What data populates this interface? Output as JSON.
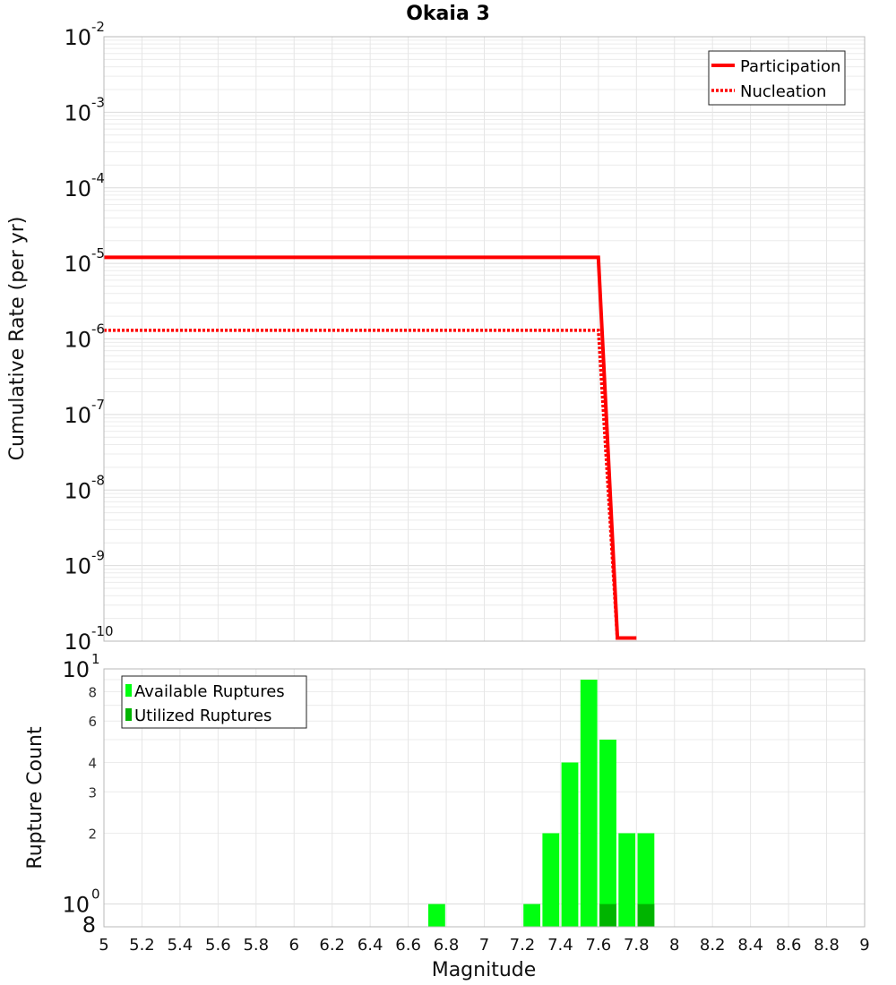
{
  "chart_data": [
    {
      "type": "line",
      "title": "Okaia 3",
      "xlabel": "",
      "ylabel": "Cumulative Rate (per yr)",
      "xlim": [
        5,
        9
      ],
      "ylim": [
        1e-10,
        0.01
      ],
      "yscale": "log",
      "grid": true,
      "legend_position": "top-right",
      "y_tick_exponents": [
        "-2",
        "-3",
        "-4",
        "-5",
        "-6",
        "-7",
        "-8",
        "-9",
        "-10"
      ],
      "y_tick_base": "10",
      "series": [
        {
          "name": "Participation",
          "style": "solid",
          "color": "#ff0000",
          "x": [
            5.0,
            7.6,
            7.7,
            7.8
          ],
          "y": [
            1.2e-05,
            1.2e-05,
            1.1e-10,
            1.1e-10
          ]
        },
        {
          "name": "Nucleation",
          "style": "dotted",
          "color": "#ff0000",
          "x": [
            5.0,
            7.6,
            7.7
          ],
          "y": [
            1.3e-06,
            1.3e-06,
            1e-10
          ]
        }
      ]
    },
    {
      "type": "bar",
      "title": "",
      "xlabel": "Magnitude",
      "ylabel": "Rupture Count",
      "xlim": [
        5,
        9
      ],
      "ylim": [
        0.8,
        10
      ],
      "yscale": "log",
      "grid": true,
      "legend_position": "top-left",
      "x_tick_labels": [
        "5",
        "5.2",
        "5.4",
        "5.6",
        "5.8",
        "6",
        "6.2",
        "6.4",
        "6.6",
        "6.8",
        "7",
        "7.2",
        "7.4",
        "7.6",
        "7.8",
        "8",
        "8.2",
        "8.4",
        "8.6",
        "8.8",
        "9"
      ],
      "y_major_ticks": [
        {
          "base": "10",
          "exp": "1"
        },
        {
          "base": "10",
          "exp": "0"
        }
      ],
      "y_minor_tick_labels": [
        "8",
        "6",
        "4",
        "3",
        "2"
      ],
      "y_bottom_label": "8",
      "bin_width": 0.1,
      "series": [
        {
          "name": "Available Ruptures",
          "color": "#00ff10",
          "x": [
            6.75,
            7.25,
            7.35,
            7.45,
            7.55,
            7.65,
            7.75,
            7.85
          ],
          "values": [
            1,
            1,
            2,
            4,
            9,
            5,
            2,
            2
          ]
        },
        {
          "name": "Utilized Ruptures",
          "color": "#00b400",
          "x": [
            7.65,
            7.85
          ],
          "values": [
            1,
            1
          ]
        }
      ]
    }
  ]
}
